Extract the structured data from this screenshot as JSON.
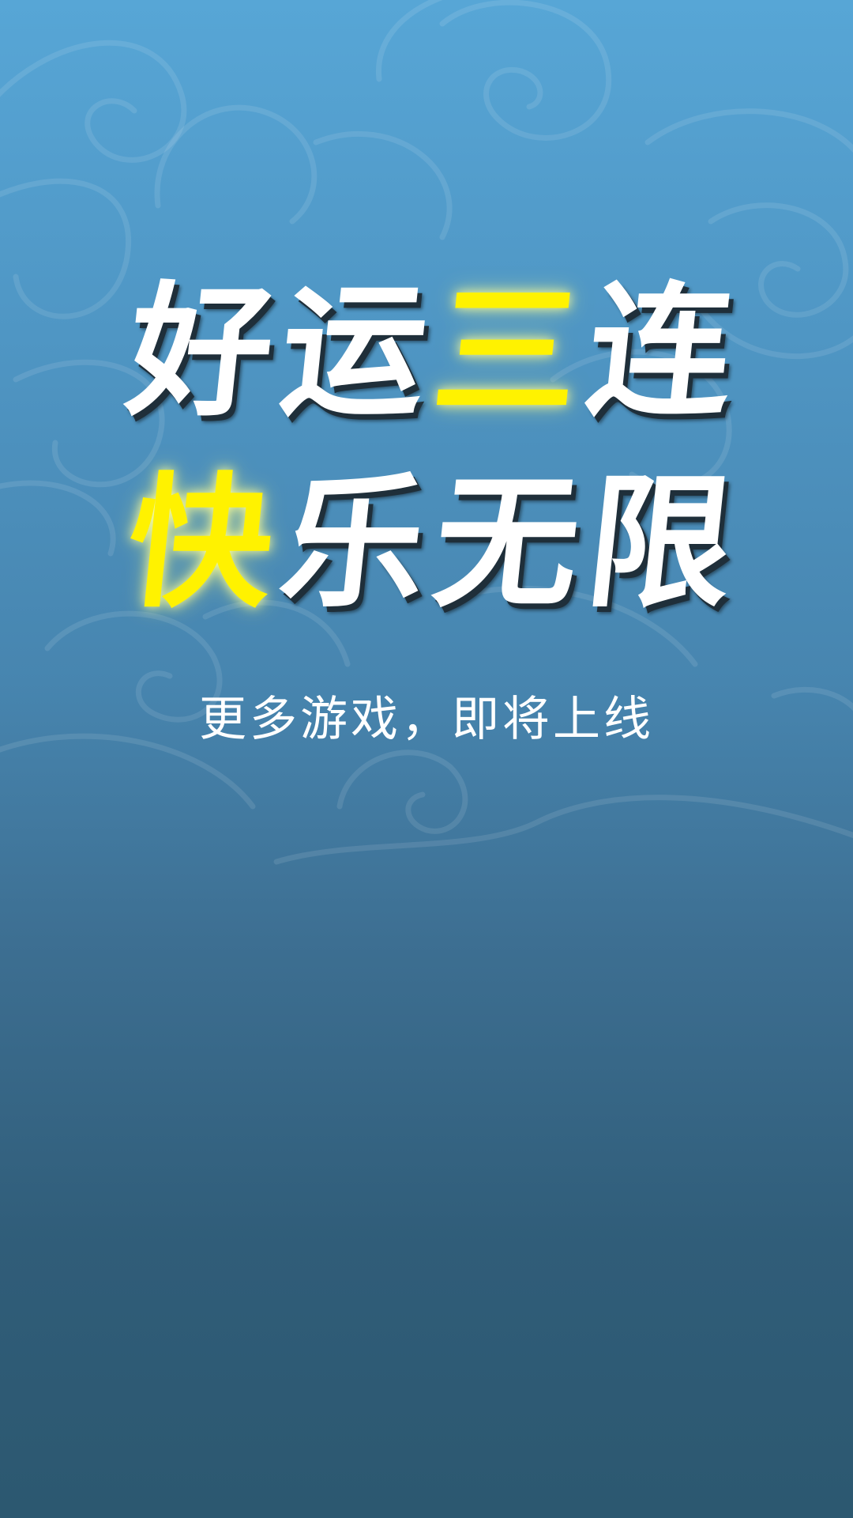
{
  "colors": {
    "bg_top": "#57a6d6",
    "bg_bottom": "#2c5870",
    "text": "#ffffff",
    "accent": "#fff200"
  },
  "headline": {
    "line1": [
      "好",
      "运",
      "三",
      "连"
    ],
    "line2": [
      "快",
      "乐",
      "无",
      "限"
    ],
    "accent_line1_index": 2,
    "accent_line2_index": 0
  },
  "subtitle": "更多游戏，即将上线"
}
